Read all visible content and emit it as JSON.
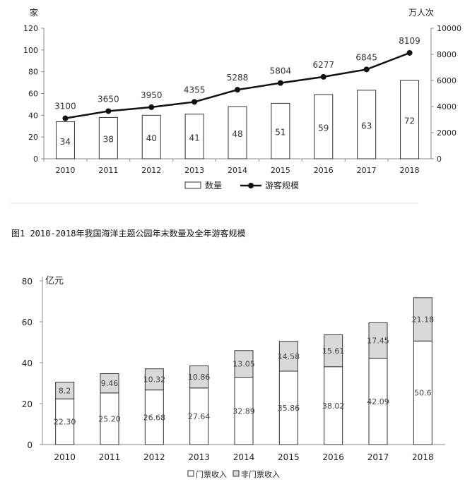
{
  "caption": "图1 2010-2018年我国海洋主题公园年末数量及全年游客规模",
  "chart_data": [
    {
      "type": "bar+line",
      "categories": [
        "2010",
        "2011",
        "2012",
        "2013",
        "2014",
        "2015",
        "2016",
        "2017",
        "2018"
      ],
      "bars": {
        "name": "数量",
        "values": [
          34,
          38,
          40,
          41,
          48,
          51,
          59,
          63,
          72
        ],
        "axis": "left"
      },
      "line": {
        "name": "游客规模",
        "values": [
          3100,
          3650,
          3950,
          4355,
          5288,
          5804,
          6277,
          6845,
          8109
        ],
        "axis": "right"
      },
      "ylabel_left": "家",
      "ylabel_right": "万人次",
      "ylim_left": [
        0,
        120
      ],
      "yticks_left": [
        0,
        20,
        40,
        60,
        80,
        100,
        120
      ],
      "ylim_right": [
        0,
        10000
      ],
      "yticks_right": [
        0,
        2000,
        4000,
        6000,
        8000,
        10000
      ],
      "legend": [
        "数量",
        "游客规模"
      ],
      "legend_position": "bottom",
      "grid": false,
      "colors": {
        "bar_fill": "#ffffff",
        "bar_stroke": "#333333",
        "line": "#111111",
        "marker": "#111111"
      }
    },
    {
      "type": "stacked-bar",
      "categories": [
        "2010",
        "2011",
        "2012",
        "2013",
        "2014",
        "2015",
        "2016",
        "2017",
        "2018"
      ],
      "series": [
        {
          "name": "门票收入",
          "values": [
            22.3,
            25.2,
            26.68,
            27.64,
            32.89,
            35.86,
            38.02,
            42.09,
            50.6
          ],
          "labels": [
            "22.30",
            "25.20",
            "26.68",
            "27.64",
            "32.89",
            "35.86",
            "38.02",
            "42.09",
            "50.6"
          ]
        },
        {
          "name": "非门票收入",
          "values": [
            8.2,
            9.46,
            10.32,
            10.86,
            13.05,
            14.58,
            15.61,
            17.45,
            21.18
          ],
          "labels": [
            "8.2",
            "9.46",
            "10.32",
            "10.86",
            "13.05",
            "14.58",
            "15.61",
            "17.45",
            "21.18"
          ]
        }
      ],
      "ylabel": "亿元",
      "ylim": [
        0,
        80
      ],
      "yticks": [
        0,
        20,
        40,
        60,
        80
      ],
      "legend": [
        "门票收入",
        "非门票收入"
      ],
      "legend_position": "bottom",
      "grid": false,
      "colors": {
        "ticket": "#ffffff",
        "non_ticket": "#d9d9d9",
        "stroke": "#333333"
      }
    }
  ]
}
